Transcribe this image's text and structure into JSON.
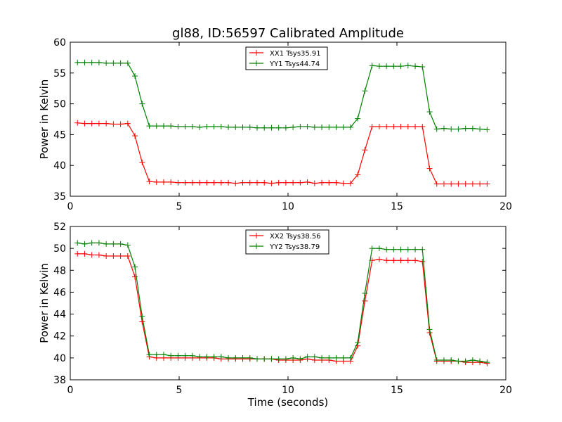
{
  "title": "gl88, ID:56597 Calibrated Amplitude",
  "chart_data": [
    {
      "type": "line",
      "xlabel": "",
      "ylabel": "Power in Kelvin",
      "xlim": [
        0,
        20
      ],
      "ylim": [
        35,
        60
      ],
      "xticks": [
        0,
        5,
        10,
        15,
        20
      ],
      "yticks": [
        35,
        40,
        45,
        50,
        55,
        60
      ],
      "legend_position": "top-center",
      "x": [
        0.33,
        0.66,
        0.99,
        1.32,
        1.65,
        1.98,
        2.31,
        2.64,
        2.97,
        3.3,
        3.63,
        3.96,
        4.29,
        4.62,
        4.95,
        5.28,
        5.61,
        5.94,
        6.27,
        6.6,
        6.93,
        7.26,
        7.59,
        7.92,
        8.25,
        8.58,
        8.91,
        9.24,
        9.57,
        9.9,
        10.23,
        10.56,
        10.89,
        11.22,
        11.55,
        11.88,
        12.21,
        12.54,
        12.87,
        13.2,
        13.53,
        13.86,
        14.19,
        14.52,
        14.85,
        15.18,
        15.51,
        15.84,
        16.17,
        16.5,
        16.83,
        17.16,
        17.49,
        17.82,
        18.15,
        18.48,
        18.81,
        19.14
      ],
      "series": [
        {
          "name": "XX1 Tsys35.91",
          "color": "#ff0000",
          "values": [
            46.9,
            46.8,
            46.8,
            46.8,
            46.8,
            46.7,
            46.7,
            46.8,
            44.8,
            40.5,
            37.4,
            37.3,
            37.3,
            37.3,
            37.2,
            37.2,
            37.2,
            37.2,
            37.2,
            37.2,
            37.2,
            37.2,
            37.1,
            37.2,
            37.2,
            37.2,
            37.2,
            37.1,
            37.2,
            37.2,
            37.2,
            37.2,
            37.3,
            37.1,
            37.2,
            37.2,
            37.2,
            37.1,
            37.1,
            38.5,
            42.5,
            46.3,
            46.3,
            46.3,
            46.3,
            46.3,
            46.3,
            46.3,
            46.3,
            39.5,
            37.0,
            37.0,
            37.0,
            37.0,
            37.0,
            37.0,
            37.0,
            37.0
          ]
        },
        {
          "name": "YY1 Tsys44.74",
          "color": "#008000",
          "values": [
            56.7,
            56.7,
            56.7,
            56.7,
            56.6,
            56.6,
            56.6,
            56.6,
            54.5,
            50.0,
            46.4,
            46.4,
            46.4,
            46.4,
            46.3,
            46.3,
            46.3,
            46.2,
            46.3,
            46.3,
            46.3,
            46.2,
            46.2,
            46.2,
            46.2,
            46.1,
            46.1,
            46.1,
            46.1,
            46.1,
            46.2,
            46.3,
            46.3,
            46.2,
            46.2,
            46.2,
            46.2,
            46.2,
            46.2,
            47.6,
            52.1,
            56.2,
            56.1,
            56.1,
            56.1,
            56.1,
            56.2,
            56.1,
            56.0,
            48.7,
            45.9,
            46.0,
            45.9,
            45.9,
            46.0,
            46.0,
            45.9,
            45.8
          ]
        }
      ]
    },
    {
      "type": "line",
      "xlabel": "Time (seconds)",
      "ylabel": "Power in Kelvin",
      "xlim": [
        0,
        20
      ],
      "ylim": [
        38,
        52
      ],
      "xticks": [
        0,
        5,
        10,
        15,
        20
      ],
      "yticks": [
        38,
        40,
        42,
        44,
        46,
        48,
        50,
        52
      ],
      "legend_position": "top-center",
      "x": [
        0.33,
        0.66,
        0.99,
        1.32,
        1.65,
        1.98,
        2.31,
        2.64,
        2.97,
        3.3,
        3.63,
        3.96,
        4.29,
        4.62,
        4.95,
        5.28,
        5.61,
        5.94,
        6.27,
        6.6,
        6.93,
        7.26,
        7.59,
        7.92,
        8.25,
        8.58,
        8.91,
        9.24,
        9.57,
        9.9,
        10.23,
        10.56,
        10.89,
        11.22,
        11.55,
        11.88,
        12.21,
        12.54,
        12.87,
        13.2,
        13.53,
        13.86,
        14.19,
        14.52,
        14.85,
        15.18,
        15.51,
        15.84,
        16.17,
        16.5,
        16.83,
        17.16,
        17.49,
        17.82,
        18.15,
        18.48,
        18.81,
        19.14
      ],
      "series": [
        {
          "name": "XX2 Tsys38.56",
          "color": "#ff0000",
          "values": [
            49.5,
            49.5,
            49.4,
            49.4,
            49.3,
            49.3,
            49.3,
            49.3,
            47.4,
            43.3,
            40.1,
            40.0,
            40.0,
            40.0,
            40.0,
            40.0,
            40.0,
            40.0,
            40.0,
            40.0,
            39.9,
            39.9,
            39.9,
            39.9,
            39.9,
            39.9,
            39.9,
            39.9,
            39.8,
            39.8,
            39.8,
            39.8,
            39.9,
            39.8,
            39.8,
            39.8,
            39.7,
            39.7,
            39.7,
            41.1,
            45.2,
            48.9,
            49.0,
            48.9,
            48.9,
            48.9,
            48.9,
            48.9,
            48.8,
            42.3,
            39.7,
            39.7,
            39.7,
            39.7,
            39.6,
            39.6,
            39.6,
            39.5
          ]
        },
        {
          "name": "YY2 Tsys38.79",
          "color": "#008000",
          "values": [
            50.5,
            50.4,
            50.5,
            50.5,
            50.4,
            50.4,
            50.4,
            50.3,
            48.3,
            43.8,
            40.3,
            40.3,
            40.3,
            40.2,
            40.2,
            40.2,
            40.2,
            40.1,
            40.1,
            40.1,
            40.1,
            40.0,
            40.0,
            40.0,
            40.0,
            39.9,
            39.9,
            39.9,
            39.9,
            39.9,
            40.0,
            39.9,
            40.1,
            40.1,
            40.0,
            40.0,
            40.0,
            40.0,
            40.0,
            41.4,
            45.9,
            50.0,
            50.0,
            49.9,
            49.9,
            49.9,
            49.9,
            49.9,
            49.9,
            42.6,
            39.8,
            39.8,
            39.8,
            39.7,
            39.7,
            39.8,
            39.7,
            39.6
          ]
        }
      ]
    }
  ]
}
